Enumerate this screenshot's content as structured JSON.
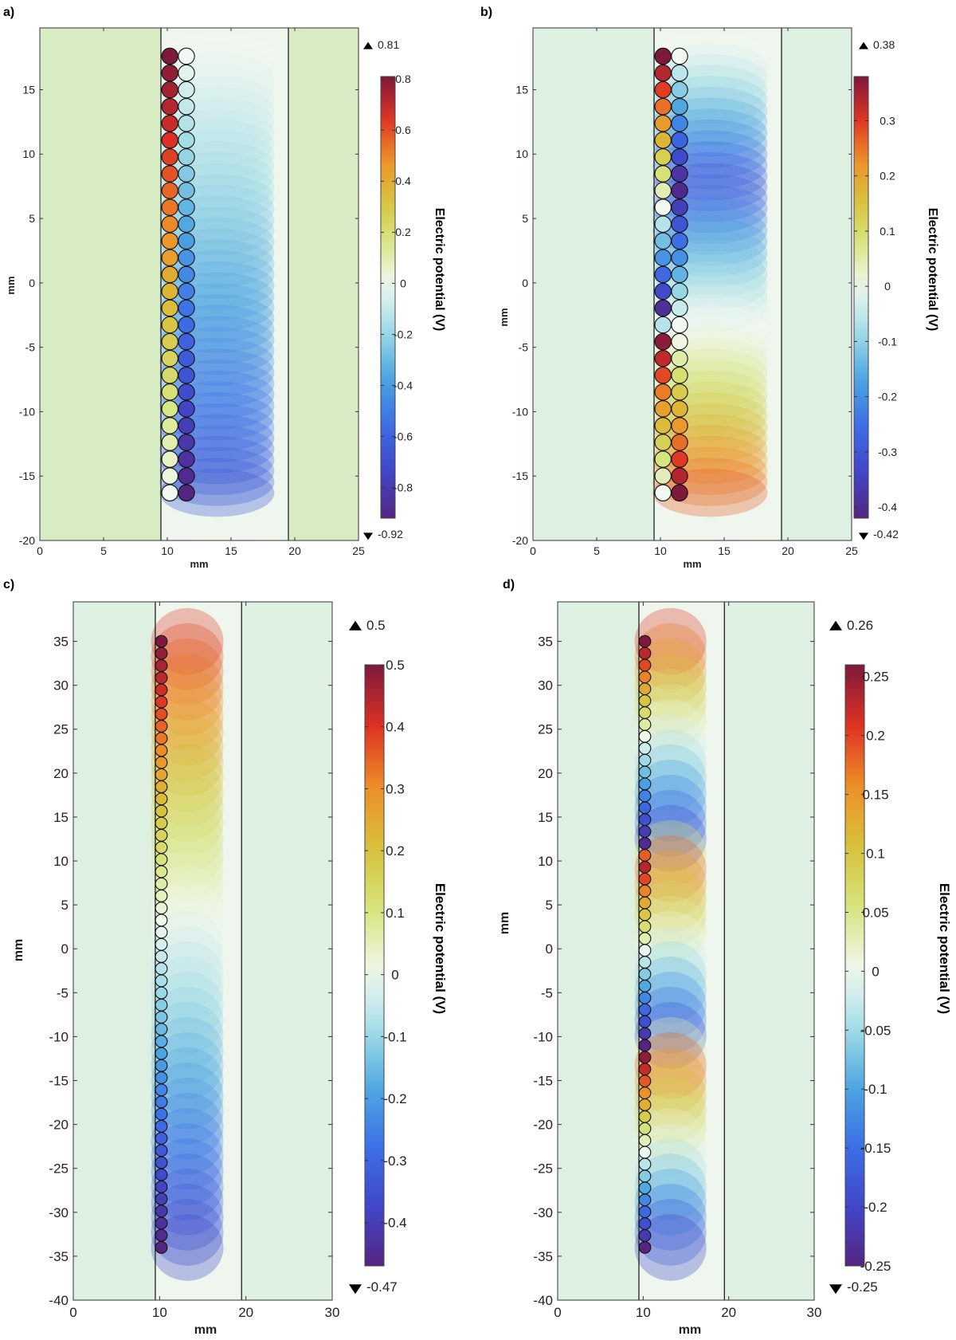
{
  "chart_data": [
    {
      "panel": "a)",
      "type": "heatmap",
      "xlabel": "mm",
      "ylabel": "mm",
      "xlim": [
        0,
        25
      ],
      "ylim": [
        -20,
        19.8
      ],
      "xticks": [
        0,
        5,
        10,
        15,
        20,
        25
      ],
      "yticks": [
        -20,
        -15,
        -10,
        -5,
        0,
        5,
        10,
        15
      ],
      "boundaries_x": [
        9.5,
        19.5
      ],
      "colorbar": {
        "title": "Electric potential (V)",
        "max_label": "0.81",
        "min_label": "-0.92",
        "vmin": -0.92,
        "vmax": 0.81,
        "ticks": [
          "-0.8",
          "-0.6",
          "-0.4",
          "-0.2",
          "0",
          "0.2",
          "0.4",
          "0.6",
          "0.8"
        ]
      },
      "electrodes": {
        "radius": 0.65,
        "columns": [
          {
            "x": 10.2,
            "y_top": 17.6,
            "y_bottom": -16.3,
            "v_top": 0.81,
            "v_bottom": 0.0
          },
          {
            "x": 11.5,
            "y_top": 17.6,
            "y_bottom": -16.3,
            "v_top": 0.0,
            "v_bottom": -0.92
          }
        ]
      }
    },
    {
      "panel": "b)",
      "type": "heatmap",
      "xlabel": "mm",
      "ylabel": "mm",
      "xlim": [
        0,
        25
      ],
      "ylim": [
        -20,
        19.8
      ],
      "xticks": [
        0,
        5,
        10,
        15,
        20,
        25
      ],
      "yticks": [
        -20,
        -15,
        -10,
        -5,
        0,
        5,
        10,
        15
      ],
      "boundaries_x": [
        9.5,
        19.5
      ],
      "colorbar": {
        "title": "Electric potential (V)",
        "max_label": "0.38",
        "min_label": "-0.42",
        "vmin": -0.42,
        "vmax": 0.38,
        "ticks": [
          "-0.4",
          "-0.3",
          "-0.2",
          "-0.1",
          "0",
          "0.1",
          "0.2",
          "0.3"
        ]
      },
      "electrodes": {
        "radius": 0.65,
        "columns": [
          {
            "x": 10.2,
            "y_top": 17.6,
            "y_bottom": -16.3,
            "segments": [
              [
                17.6,
                0.38
              ],
              [
                5.8,
                0.0
              ],
              [
                -2.5,
                -0.42
              ],
              [
                -4.2,
                0.38
              ],
              [
                -16.3,
                0.0
              ]
            ]
          },
          {
            "x": 11.5,
            "y_top": 17.6,
            "y_bottom": -16.3,
            "segments": [
              [
                17.6,
                0.0
              ],
              [
                7.5,
                -0.42
              ],
              [
                -3.0,
                0.0
              ],
              [
                -4.2,
                0.0
              ],
              [
                -16.3,
                0.38
              ]
            ]
          }
        ]
      }
    },
    {
      "panel": "c)",
      "type": "heatmap",
      "xlabel": "mm",
      "ylabel": "mm",
      "xlim": [
        0,
        30
      ],
      "ylim": [
        -40,
        39.5
      ],
      "xticks": [
        0,
        10,
        20,
        30
      ],
      "yticks": [
        -40,
        -35,
        -30,
        -25,
        -20,
        -15,
        -10,
        -5,
        0,
        5,
        10,
        15,
        20,
        25,
        30,
        35
      ],
      "boundaries_x": [
        9.5,
        19.5
      ],
      "colorbar": {
        "title": "Electric potential (V)",
        "max_label": "0.5",
        "min_label": "-0.47",
        "vmin": -0.47,
        "vmax": 0.5,
        "ticks": [
          "-0.4",
          "-0.3",
          "-0.2",
          "-0.1",
          "0",
          "0.1",
          "0.2",
          "0.3",
          "0.4",
          "0.5"
        ]
      },
      "electrodes": {
        "radius": 0.7,
        "columns": [
          {
            "x": 10.2,
            "y_top": 35.0,
            "y_bottom": -34.0,
            "segments": [
              [
                35.0,
                0.5
              ],
              [
                3.0,
                0.0
              ],
              [
                -34.0,
                -0.47
              ]
            ]
          }
        ]
      }
    },
    {
      "panel": "d)",
      "type": "heatmap",
      "xlabel": "mm",
      "ylabel": "mm",
      "xlim": [
        0,
        30
      ],
      "ylim": [
        -40,
        39.5
      ],
      "xticks": [
        0,
        10,
        20,
        30
      ],
      "yticks": [
        -40,
        -35,
        -30,
        -25,
        -20,
        -15,
        -10,
        -5,
        0,
        5,
        10,
        15,
        20,
        25,
        30,
        35
      ],
      "boundaries_x": [
        9.5,
        19.5
      ],
      "colorbar": {
        "title": "Electric potential (V)",
        "max_label": "0.26",
        "min_label": "-0.25",
        "vmin": -0.25,
        "vmax": 0.26,
        "ticks": [
          "-0.25",
          "-0.2",
          "-0.15",
          "-0.1",
          "-0.05",
          "0",
          "0.05",
          "0.1",
          "0.15",
          "0.2",
          "0.25"
        ]
      },
      "electrodes": {
        "radius": 0.7,
        "columns": [
          {
            "x": 10.2,
            "y_top": 35.0,
            "y_bottom": -34.0,
            "segments": [
              [
                35.0,
                0.26
              ],
              [
                24.0,
                0.0
              ],
              [
                11.5,
                -0.25
              ],
              [
                10.5,
                0.26
              ],
              [
                0.0,
                0.0
              ],
              [
                -11.0,
                -0.25
              ],
              [
                -12.0,
                0.26
              ],
              [
                -23.0,
                0.0
              ],
              [
                -34.0,
                -0.25
              ]
            ]
          }
        ]
      }
    }
  ]
}
